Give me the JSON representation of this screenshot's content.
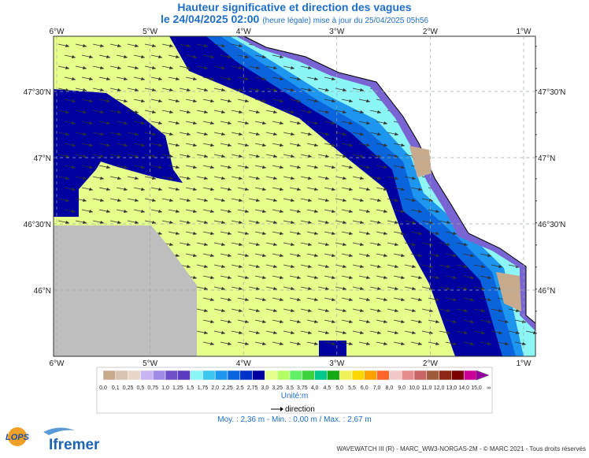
{
  "header": {
    "title": "Hauteur significative et direction des vagues",
    "date": "le 24/04/2025 02:00",
    "update": "(heure légale) mise à jour du 25/04/2025 05h56"
  },
  "map": {
    "longitudes": [
      "6°W",
      "5°W",
      "4°W",
      "3°W",
      "2°W",
      "1°W"
    ],
    "latitudes": [
      "47°30'N",
      "47°N",
      "46°30'N",
      "46°N"
    ]
  },
  "legend": {
    "labels": [
      "0,0",
      "0,1",
      "0,25",
      "0,5",
      "0,75",
      "1,0",
      "1,25",
      "1,5",
      "1,75",
      "2,0",
      "2,25",
      "2,5",
      "2,75",
      "3,0",
      "3,25",
      "3,5",
      "3,75",
      "4,0",
      "4,5",
      "5,0",
      "5,5",
      "6,0",
      "7,0",
      "8,0",
      "9,0",
      "10,0",
      "11,0",
      "12,0",
      "13,0",
      "14,0",
      "15,0",
      "∞"
    ],
    "colors": [
      "#c8aa8c",
      "#d7c3b0",
      "#e6d7ca",
      "#c8b4f0",
      "#a08ce6",
      "#6e50c8",
      "#5a3cbe",
      "#8cf5f5",
      "#3cc8f0",
      "#1e96f0",
      "#0a64dc",
      "#0032c8",
      "#0000a0",
      "#e6ff8c",
      "#b4ff64",
      "#64f064",
      "#3cd23c",
      "#00c88c",
      "#14aa14",
      "#f0f05a",
      "#ffd700",
      "#ffa000",
      "#ff6428",
      "#f0c8c8",
      "#e68c8c",
      "#c86464",
      "#a05a3c",
      "#8c2814",
      "#780000",
      "#c80096",
      "#9600a0"
    ],
    "unit": "Unité:m",
    "direction": "direction",
    "stats": "Moy. : 2,36 m   -   Min. : 0,00 m / Max. : 2,67 m"
  },
  "footer": {
    "lops": "LOPS",
    "ifremer": "Ifremer",
    "credits": "WAVEWATCH III (R) - MARC_WW3-NORGAS-2M - © MARC 2021 - Tous droits réservés"
  }
}
